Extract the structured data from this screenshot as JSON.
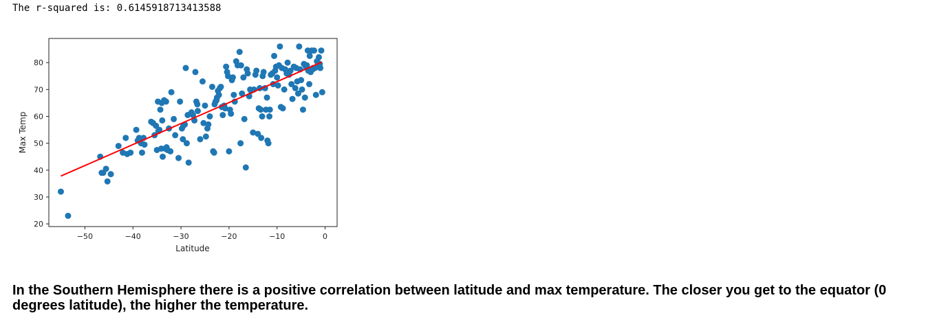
{
  "output": {
    "rsquared_text": "The r-squared is: 0.6145918713413588"
  },
  "markdown": {
    "text": "In the Southern Hemisphere there is a positive correlation between latitude and max temperature. The closer you get to the equator (0 degrees latitude), the higher the temperature."
  },
  "chart_data": {
    "type": "scatter",
    "title": "",
    "xlabel": "Latitude",
    "ylabel": "Max Temp",
    "xlim": [
      -57.5,
      2.5
    ],
    "ylim": [
      19,
      89
    ],
    "xticks": [
      -50,
      -40,
      -30,
      -20,
      -10,
      0
    ],
    "xtick_labels": [
      "−50",
      "−40",
      "−30",
      "−20",
      "−10",
      "0"
    ],
    "yticks": [
      20,
      30,
      40,
      50,
      60,
      70,
      80
    ],
    "ytick_labels": [
      "20",
      "30",
      "40",
      "50",
      "60",
      "70",
      "80"
    ],
    "grid": false,
    "point_color": "#1f77b4",
    "regression_color": "#ff0000",
    "regression_line": {
      "x": [
        -55,
        -0.7
      ],
      "y": [
        37.8,
        80.2
      ]
    },
    "points": [
      [
        -55.0,
        32.0
      ],
      [
        -53.5,
        23.0
      ],
      [
        -46.8,
        45.0
      ],
      [
        -46.5,
        39.0
      ],
      [
        -46.2,
        39.0
      ],
      [
        -45.6,
        40.5
      ],
      [
        -45.3,
        35.8
      ],
      [
        -44.6,
        38.5
      ],
      [
        -43.0,
        49.0
      ],
      [
        -42.1,
        46.5
      ],
      [
        -41.5,
        52.0
      ],
      [
        -41.2,
        46.0
      ],
      [
        -40.5,
        46.5
      ],
      [
        -39.3,
        55.0
      ],
      [
        -39.0,
        51.0
      ],
      [
        -38.7,
        52.0
      ],
      [
        -38.3,
        50.0
      ],
      [
        -38.1,
        46.5
      ],
      [
        -37.8,
        52.0
      ],
      [
        -37.6,
        49.5
      ],
      [
        -36.2,
        58.0
      ],
      [
        -35.8,
        57.5
      ],
      [
        -35.5,
        53.0
      ],
      [
        -35.2,
        56.5
      ],
      [
        -35.0,
        47.5
      ],
      [
        -34.8,
        65.5
      ],
      [
        -34.7,
        54.5
      ],
      [
        -34.5,
        55.0
      ],
      [
        -34.3,
        62.5
      ],
      [
        -34.1,
        48.0
      ],
      [
        -34.0,
        65.0
      ],
      [
        -33.9,
        58.5
      ],
      [
        -33.8,
        45.0
      ],
      [
        -33.5,
        66.0
      ],
      [
        -33.3,
        48.0
      ],
      [
        -33.1,
        65.5
      ],
      [
        -33.0,
        48.5
      ],
      [
        -32.8,
        47.5
      ],
      [
        -32.5,
        55.5
      ],
      [
        -32.2,
        47.0
      ],
      [
        -32.0,
        69.0
      ],
      [
        -31.5,
        59.0
      ],
      [
        -31.2,
        53.0
      ],
      [
        -30.5,
        44.5
      ],
      [
        -30.2,
        65.5
      ],
      [
        -29.8,
        55.5
      ],
      [
        -29.6,
        51.5
      ],
      [
        -29.5,
        56.5
      ],
      [
        -29.2,
        57.0
      ],
      [
        -29.0,
        78.0
      ],
      [
        -28.8,
        50.0
      ],
      [
        -28.6,
        60.5
      ],
      [
        -28.4,
        42.8
      ],
      [
        -27.8,
        61.5
      ],
      [
        -27.5,
        60.5
      ],
      [
        -27.2,
        58.5
      ],
      [
        -27.0,
        76.5
      ],
      [
        -26.8,
        65.5
      ],
      [
        -26.6,
        64.5
      ],
      [
        -26.5,
        62.0
      ],
      [
        -26.0,
        51.5
      ],
      [
        -25.5,
        73.0
      ],
      [
        -25.3,
        57.5
      ],
      [
        -25.0,
        64.0
      ],
      [
        -24.8,
        52.5
      ],
      [
        -24.5,
        55.5
      ],
      [
        -24.3,
        57.0
      ],
      [
        -24.0,
        60.0
      ],
      [
        -23.5,
        71.0
      ],
      [
        -23.3,
        47.0
      ],
      [
        -23.1,
        46.5
      ],
      [
        -23.0,
        64.5
      ],
      [
        -22.8,
        65.5
      ],
      [
        -22.6,
        66.0
      ],
      [
        -22.5,
        67.0
      ],
      [
        -22.3,
        69.5
      ],
      [
        -22.1,
        68.0
      ],
      [
        -21.9,
        70.5
      ],
      [
        -21.7,
        71.0
      ],
      [
        -21.5,
        63.5
      ],
      [
        -21.3,
        60.5
      ],
      [
        -21.0,
        64.0
      ],
      [
        -20.8,
        63.0
      ],
      [
        -20.6,
        78.5
      ],
      [
        -20.4,
        76.5
      ],
      [
        -20.2,
        75.0
      ],
      [
        -20.0,
        47.0
      ],
      [
        -19.8,
        62.5
      ],
      [
        -19.6,
        61.0
      ],
      [
        -19.4,
        73.5
      ],
      [
        -19.2,
        74.5
      ],
      [
        -19.0,
        68.0
      ],
      [
        -18.8,
        65.5
      ],
      [
        -18.5,
        80.5
      ],
      [
        -18.2,
        79.0
      ],
      [
        -17.8,
        84.0
      ],
      [
        -17.6,
        50.0
      ],
      [
        -17.5,
        79.0
      ],
      [
        -17.3,
        68.5
      ],
      [
        -17.0,
        74.5
      ],
      [
        -16.8,
        59.0
      ],
      [
        -16.5,
        41.0
      ],
      [
        -16.3,
        77.5
      ],
      [
        -16.1,
        76.0
      ],
      [
        -15.8,
        67.5
      ],
      [
        -15.6,
        70.0
      ],
      [
        -15.4,
        69.5
      ],
      [
        -15.0,
        54.0
      ],
      [
        -14.8,
        70.0
      ],
      [
        -14.5,
        75.5
      ],
      [
        -14.3,
        77.0
      ],
      [
        -14.0,
        53.5
      ],
      [
        -13.8,
        63.0
      ],
      [
        -13.6,
        70.5
      ],
      [
        -13.4,
        62.5
      ],
      [
        -13.3,
        52.0
      ],
      [
        -13.1,
        60.0
      ],
      [
        -13.0,
        75.0
      ],
      [
        -12.8,
        76.5
      ],
      [
        -12.5,
        70.5
      ],
      [
        -12.3,
        62.5
      ],
      [
        -12.1,
        67.0
      ],
      [
        -12.0,
        51.0
      ],
      [
        -11.8,
        50.0
      ],
      [
        -11.6,
        60.0
      ],
      [
        -11.5,
        62.5
      ],
      [
        -11.3,
        75.5
      ],
      [
        -11.0,
        76.0
      ],
      [
        -10.8,
        72.0
      ],
      [
        -10.6,
        82.5
      ],
      [
        -10.4,
        77.0
      ],
      [
        -10.2,
        78.5
      ],
      [
        -10.0,
        74.5
      ],
      [
        -9.8,
        71.5
      ],
      [
        -9.6,
        79.0
      ],
      [
        -9.4,
        86.0
      ],
      [
        -9.2,
        63.5
      ],
      [
        -9.0,
        78.0
      ],
      [
        -8.8,
        63.0
      ],
      [
        -8.5,
        70.0
      ],
      [
        -8.3,
        77.5
      ],
      [
        -8.0,
        76.0
      ],
      [
        -7.8,
        80.0
      ],
      [
        -7.5,
        75.5
      ],
      [
        -7.2,
        77.0
      ],
      [
        -7.0,
        72.0
      ],
      [
        -6.8,
        66.5
      ],
      [
        -6.5,
        78.5
      ],
      [
        -6.2,
        70.5
      ],
      [
        -6.0,
        78.0
      ],
      [
        -5.8,
        73.0
      ],
      [
        -5.6,
        68.5
      ],
      [
        -5.4,
        86.0
      ],
      [
        -5.2,
        77.5
      ],
      [
        -5.0,
        73.5
      ],
      [
        -4.8,
        70.0
      ],
      [
        -4.6,
        62.5
      ],
      [
        -4.4,
        79.5
      ],
      [
        -4.2,
        67.0
      ],
      [
        -4.0,
        78.5
      ],
      [
        -3.8,
        79.0
      ],
      [
        -3.6,
        84.5
      ],
      [
        -3.5,
        77.0
      ],
      [
        -3.3,
        72.0
      ],
      [
        -3.2,
        82.5
      ],
      [
        -3.0,
        76.5
      ],
      [
        -2.8,
        84.5
      ],
      [
        -2.6,
        77.5
      ],
      [
        -2.5,
        78.0
      ],
      [
        -2.3,
        84.5
      ],
      [
        -2.1,
        78.0
      ],
      [
        -1.9,
        68.0
      ],
      [
        -1.7,
        80.5
      ],
      [
        -1.5,
        78.5
      ],
      [
        -1.3,
        82.0
      ],
      [
        -1.1,
        79.5
      ],
      [
        -1.0,
        78.0
      ],
      [
        -0.8,
        84.5
      ],
      [
        -0.6,
        69.0
      ]
    ]
  }
}
